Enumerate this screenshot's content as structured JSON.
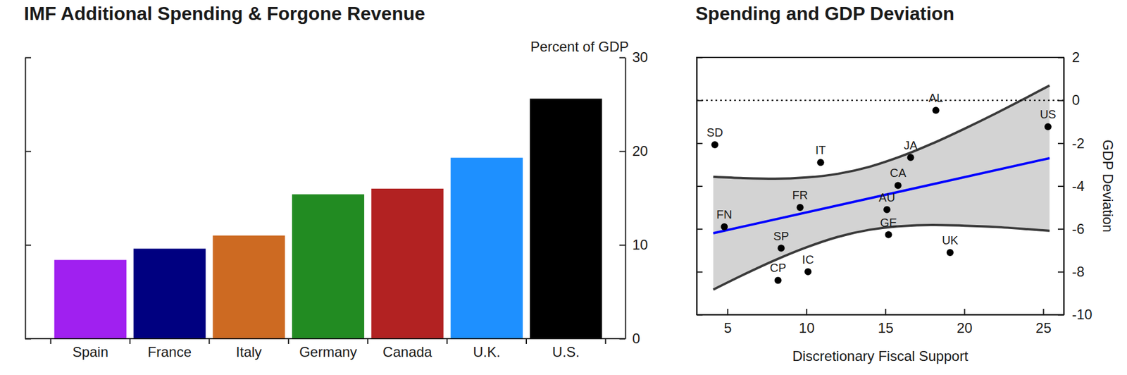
{
  "chart_data": [
    {
      "type": "bar",
      "title": "IMF Additional Spending & Forgone Revenue",
      "y_label": "Percent of GDP",
      "categories": [
        "Spain",
        "France",
        "Italy",
        "Germany",
        "Canada",
        "U.K.",
        "U.S."
      ],
      "values": [
        8.4,
        9.6,
        11.0,
        15.4,
        16.0,
        19.3,
        25.6
      ],
      "colors": [
        "#a020f0",
        "#000080",
        "#cd6a22",
        "#228b22",
        "#b22222",
        "#1e90ff",
        "#000000"
      ],
      "ylim": [
        0,
        30
      ],
      "yticks": [
        0,
        10,
        20,
        30
      ]
    },
    {
      "type": "scatter",
      "title": "Spending and GDP Deviation",
      "x_label": "Discretionary Fiscal Support",
      "y_label": "GDP Deviation",
      "xlim": [
        3.05,
        26.3
      ],
      "xticks": [
        5,
        10,
        15,
        20,
        25
      ],
      "ylim": [
        -10,
        2
      ],
      "yticks": [
        2,
        0,
        -2,
        -4,
        -6,
        -8,
        -10
      ],
      "series": [
        {
          "type": "band",
          "color": "#d3d3d3",
          "x": [
            4.1,
            6,
            8,
            10,
            12,
            14,
            16,
            18,
            20,
            22,
            24,
            25.4
          ],
          "values": [
            -3.57,
            -3.63,
            -3.66,
            -3.6,
            -3.43,
            -3.1,
            -2.61,
            -2.01,
            -1.33,
            -0.61,
            0.15,
            0.69
          ],
          "lower": [
            -8.83,
            -8.14,
            -7.46,
            -6.86,
            -6.37,
            -6.04,
            -5.87,
            -5.82,
            -5.85,
            -5.91,
            -6.01,
            -6.09
          ]
        },
        {
          "type": "line",
          "color": "#0000ff",
          "line_style": "solid",
          "x": [
            4.1,
            25.4
          ],
          "values": [
            -6.2,
            -2.7
          ]
        },
        {
          "type": "line",
          "color": "#000000",
          "line_style": "dotted",
          "x": [
            3.05,
            26.3
          ],
          "values": [
            0,
            0
          ]
        },
        {
          "type": "scatter",
          "color": "#000000",
          "marker": "circle",
          "x": [
            4.2,
            4.8,
            10.9,
            9.6,
            8.4,
            8.2,
            10.1,
            18.2,
            25.3,
            16.6,
            15.8,
            15.1,
            15.2,
            19.1
          ],
          "values": [
            -2.07,
            -5.9,
            -2.9,
            -5.0,
            -6.9,
            -8.4,
            -8.0,
            -0.47,
            -1.23,
            -2.67,
            -3.97,
            -5.1,
            -6.27,
            -7.1
          ],
          "labels": [
            "SD",
            "FN",
            "IT",
            "FR",
            "SP",
            "CP",
            "IC",
            "AL",
            "US",
            "JA",
            "CA",
            "AU",
            "GE",
            "UK"
          ]
        }
      ]
    }
  ]
}
